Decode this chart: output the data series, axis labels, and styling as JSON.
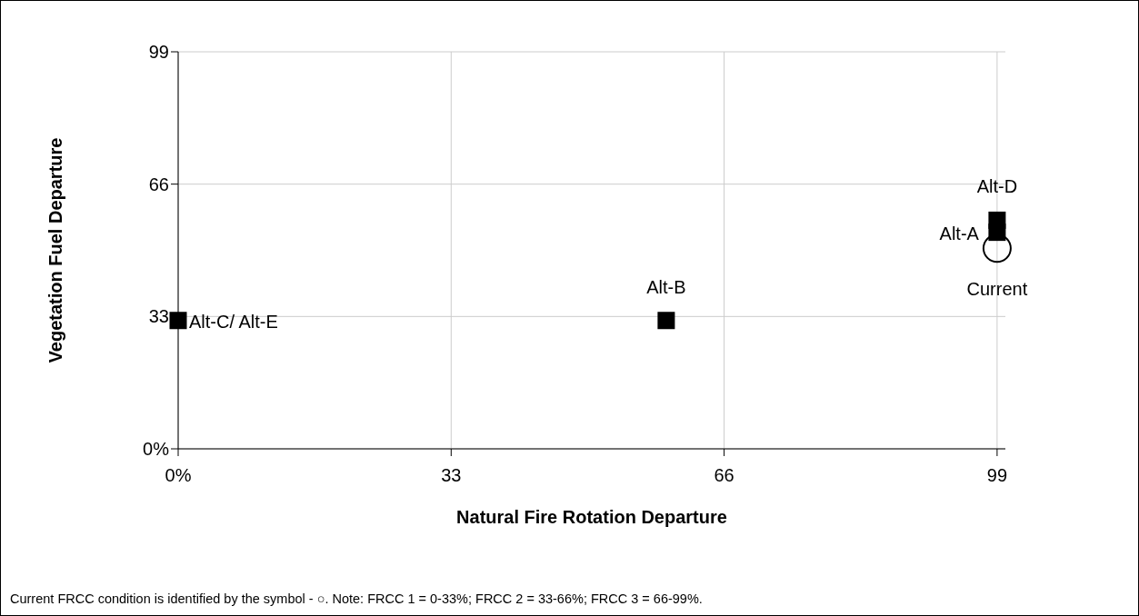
{
  "chart_data": {
    "type": "scatter",
    "xlabel": "Natural Fire Rotation Departure",
    "ylabel": "Vegetation Fuel Departure",
    "xlim": [
      0,
      100
    ],
    "ylim": [
      0,
      99
    ],
    "xticks": [
      {
        "value": 0,
        "label": "0%"
      },
      33,
      66,
      99
    ],
    "yticks": [
      {
        "value": 0,
        "label": "0%"
      },
      33,
      66,
      99
    ],
    "grid": true,
    "series": [
      {
        "color": "#000000",
        "marker": "square",
        "x": [
          0,
          59,
          99,
          99
        ],
        "values": [
          32,
          32,
          54,
          57
        ]
      },
      {
        "color": "#000000",
        "marker": "circle",
        "x": [
          99
        ],
        "values": [
          50
        ]
      }
    ],
    "annotations": [
      {
        "text": "Alt-C/ Alt-E",
        "x": 0,
        "y": 32
      },
      {
        "text": "Alt-B",
        "x": 59,
        "y": 32
      },
      {
        "text": "Alt-D",
        "x": 99,
        "y": 57
      },
      {
        "text": "Alt-A",
        "x": 99,
        "y": 54
      },
      {
        "text": "Current",
        "x": 99,
        "y": 50
      },
      "Current FRCC condition is identified by the symbol - ○. Note: FRCC 1 = 0-33%; FRCC 2 = 33-66%; FRCC 3 = 66-99%."
    ]
  }
}
